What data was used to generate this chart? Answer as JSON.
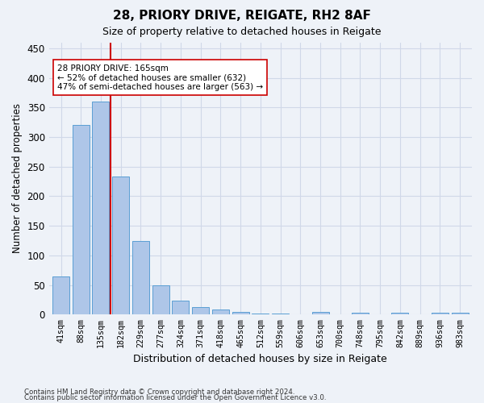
{
  "title1": "28, PRIORY DRIVE, REIGATE, RH2 8AF",
  "title2": "Size of property relative to detached houses in Reigate",
  "xlabel": "Distribution of detached houses by size in Reigate",
  "ylabel": "Number of detached properties",
  "categories": [
    "41sqm",
    "88sqm",
    "135sqm",
    "182sqm",
    "229sqm",
    "277sqm",
    "324sqm",
    "371sqm",
    "418sqm",
    "465sqm",
    "512sqm",
    "559sqm",
    "606sqm",
    "653sqm",
    "700sqm",
    "748sqm",
    "795sqm",
    "842sqm",
    "889sqm",
    "936sqm",
    "983sqm"
  ],
  "bar_heights": [
    65,
    320,
    360,
    233,
    125,
    50,
    23,
    13,
    8,
    5,
    2,
    2,
    0,
    5,
    0,
    3,
    0,
    3,
    0,
    3,
    3
  ],
  "bar_color": "#aec6e8",
  "bar_edge_color": "#5a9fd4",
  "grid_color": "#d0d8e8",
  "vline_x": 2.5,
  "vline_color": "#cc0000",
  "annotation_line1": "28 PRIORY DRIVE: 165sqm",
  "annotation_line2": "← 52% of detached houses are smaller (632)",
  "annotation_line3": "47% of semi-detached houses are larger (563) →",
  "annotation_box_color": "#ffffff",
  "annotation_box_edge": "#cc0000",
  "ylim": [
    0,
    460
  ],
  "yticks": [
    0,
    50,
    100,
    150,
    200,
    250,
    300,
    350,
    400,
    450
  ],
  "footnote1": "Contains HM Land Registry data © Crown copyright and database right 2024.",
  "footnote2": "Contains public sector information licensed under the Open Government Licence v3.0.",
  "bg_color": "#eef2f8"
}
